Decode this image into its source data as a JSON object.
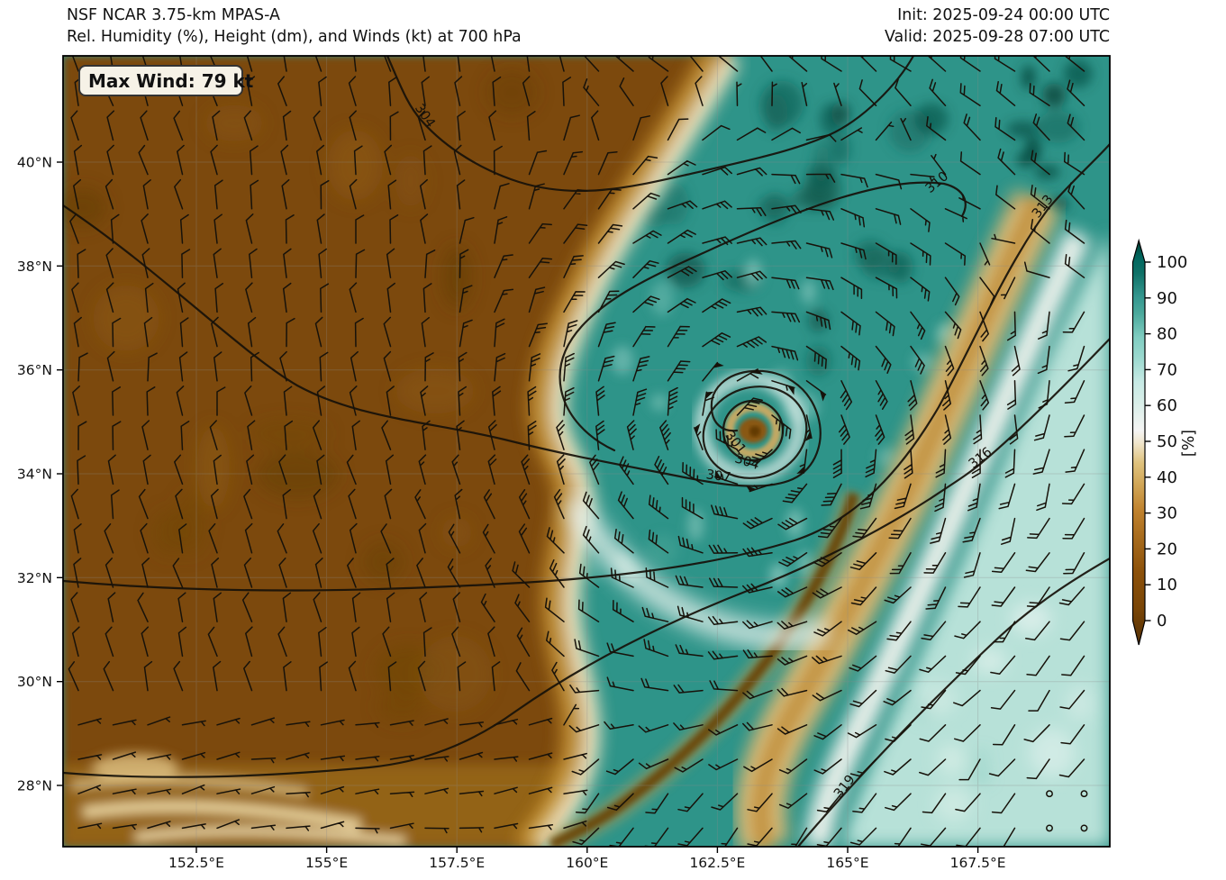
{
  "header": {
    "model": "NSF NCAR 3.75-km MPAS-A",
    "field": "Rel. Humidity (%), Height (dm), and Winds (kt) at 700 hPa",
    "init": "Init: 2025-09-24 00:00 UTC",
    "valid": "Valid: 2025-09-28 07:00 UTC"
  },
  "annotation": {
    "max_wind": "Max Wind: 79 kt"
  },
  "colorbar": {
    "label": "[%]",
    "min": 0,
    "max": 100,
    "ticks": [
      "0",
      "10",
      "20",
      "30",
      "40",
      "50",
      "60",
      "70",
      "80",
      "90",
      "100"
    ],
    "colormap": "BrBG brown-white-teal",
    "stops": [
      "#543005",
      "#8c510a",
      "#bf812d",
      "#dfc27d",
      "#f6e8c3",
      "#f5f5f5",
      "#c7eae5",
      "#80cdc1",
      "#35978f",
      "#01665e",
      "#003c30"
    ]
  },
  "axes": {
    "lon_ticks": [
      "152.5°E",
      "155°E",
      "157.5°E",
      "160°E",
      "162.5°E",
      "165°E",
      "167.5°E"
    ],
    "lat_ticks": [
      "40°N",
      "38°N",
      "36°N",
      "34°N",
      "32°N",
      "30°N",
      "28°N"
    ]
  },
  "contour_labels": [
    "304",
    "301",
    "304",
    "307",
    "310",
    "313",
    "316",
    "319"
  ],
  "chart_data": {
    "type": "heatmap",
    "title": "NSF NCAR 3.75-km MPAS-A",
    "subtitle": "Rel. Humidity (%), Height (dm), and Winds (kt) at 700 hPa",
    "init_time": "2025-09-24 00:00 UTC",
    "valid_time": "2025-09-28 07:00 UTC",
    "level_hPa": 700,
    "max_wind_kt": 79,
    "shaded_variable": "relative humidity (%)",
    "contour_variable": "geopotential height (dm)",
    "vector_variable": "wind barbs (kt)",
    "lon_range_deg_e": [
      150,
      170
    ],
    "lat_range_deg_n": [
      26.8,
      42.1
    ],
    "lon_tick_values": [
      152.5,
      155,
      157.5,
      160,
      162.5,
      165,
      167.5
    ],
    "lat_tick_values": [
      40,
      38,
      36,
      34,
      32,
      30,
      28
    ],
    "colorbar_range": [
      0,
      100
    ],
    "colorbar_tick_step": 10,
    "contour_levels_dm": [
      301,
      304,
      307,
      310,
      313,
      316,
      319
    ],
    "contour_interval_dm": 3,
    "cyclone_center": {
      "lon_e": 163.1,
      "lat_n": 34.8,
      "min_height_dm": 301,
      "dry_eye": true
    },
    "notable_features": [
      "large dry air mass (RH < 20%) over the northwest half of the domain",
      "moist shield (RH 80-100%) wrapping around a cyclone near 163E 34.8N",
      "closed height contours 301/304/307 dm around the cyclone",
      "dry slot filament spiraling into the storm from the southeast",
      "tan dry band sweeping SW-NE along the eastern flank (313-316 dm ridge side)",
      "trade-wind easterlies and drier streaks in the far southwest corner"
    ],
    "grid_on": true,
    "legend_position": "right colorbar"
  }
}
